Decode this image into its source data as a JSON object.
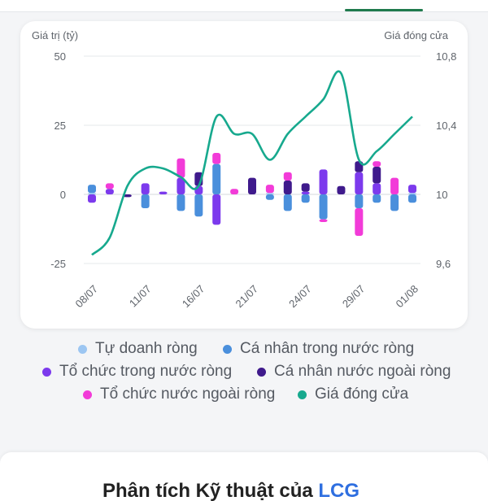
{
  "chart_data": {
    "type": "bar",
    "y_left_label": "Giá trị (tỷ)",
    "y_right_label": "Giá đóng cửa",
    "y_left_ticks": [
      50,
      25,
      0,
      -25
    ],
    "y_right_ticks": [
      "10,8",
      "10,4",
      "10",
      "9,6"
    ],
    "ylim_left": [
      -25,
      50
    ],
    "ylim_right": [
      9.6,
      10.8
    ],
    "x_tick_labels": [
      "08/07",
      "11/07",
      "16/07",
      "21/07",
      "24/07",
      "29/07",
      "01/08"
    ],
    "x_tick_index": [
      0,
      3,
      6,
      9,
      12,
      15,
      18
    ],
    "days": 19,
    "colors": {
      "tu_doanh": "#9cc6f2",
      "ca_nhan_trong_nuoc": "#4a8fdc",
      "to_chuc_trong_nuoc": "#7c3aed",
      "ca_nhan_nuoc_ngoai": "#3f1a8c",
      "to_chuc_nuoc_ngoai": "#f23bd8",
      "gia_dong_cua": "#17a98e"
    },
    "series": [
      {
        "name": "Tự doanh ròng",
        "key": "tu_doanh",
        "values": [
          0.5,
          0,
          0,
          0,
          0,
          0,
          0,
          0,
          0,
          0,
          0.5,
          0,
          0,
          0,
          0,
          0,
          0,
          0,
          0.5
        ]
      },
      {
        "name": "Cá nhân trong nước ròng",
        "key": "ca_nhan_trong_nuoc",
        "values": [
          3,
          0,
          0,
          -5,
          0,
          -6,
          -8,
          11,
          0,
          0,
          -2,
          -6,
          -3,
          -9,
          0,
          -5,
          -3,
          -6,
          -3
        ]
      },
      {
        "name": "Tổ chức trong nước ròng",
        "key": "to_chuc_trong_nuoc",
        "values": [
          -3,
          2,
          0,
          4,
          1,
          6,
          3,
          -11,
          0,
          0,
          0,
          0,
          1,
          9,
          0,
          8,
          4,
          0,
          3
        ]
      },
      {
        "name": "Cá nhân nước ngoài ròng",
        "key": "ca_nhan_nuoc_ngoai",
        "values": [
          0,
          0,
          -1,
          0,
          0,
          0,
          5,
          0,
          0,
          6,
          0,
          5,
          3,
          0,
          3,
          4,
          6,
          0,
          0
        ]
      },
      {
        "name": "Tổ chức nước ngoài ròng",
        "key": "to_chuc_nuoc_ngoai",
        "values": [
          0,
          2,
          0,
          0,
          0,
          7,
          0,
          4,
          2,
          0,
          3,
          3,
          0,
          -1,
          0,
          -10,
          2,
          6,
          0
        ]
      },
      {
        "name": "Giá đóng cửa",
        "key": "gia_dong_cua",
        "axis": "right",
        "values": [
          9.65,
          9.75,
          10.05,
          10.15,
          10.15,
          10.1,
          10.05,
          10.45,
          10.35,
          10.35,
          10.2,
          10.35,
          10.45,
          10.55,
          10.7,
          10.2,
          10.25,
          10.35,
          10.45
        ]
      }
    ]
  },
  "legend": [
    {
      "label": "Tự doanh ròng",
      "color": "#9cc6f2"
    },
    {
      "label": "Cá nhân trong nước ròng",
      "color": "#4a8fdc"
    },
    {
      "label": "Tổ chức trong nước ròng",
      "color": "#7c3aed"
    },
    {
      "label": "Cá nhân nước ngoài ròng",
      "color": "#3f1a8c"
    },
    {
      "label": "Tổ chức nước ngoài ròng",
      "color": "#f23bd8"
    },
    {
      "label": "Giá đóng cửa",
      "color": "#17a98e"
    }
  ],
  "section": {
    "title_main": "Phân tích Kỹ thuật của",
    "title_ticker": "LCG"
  }
}
